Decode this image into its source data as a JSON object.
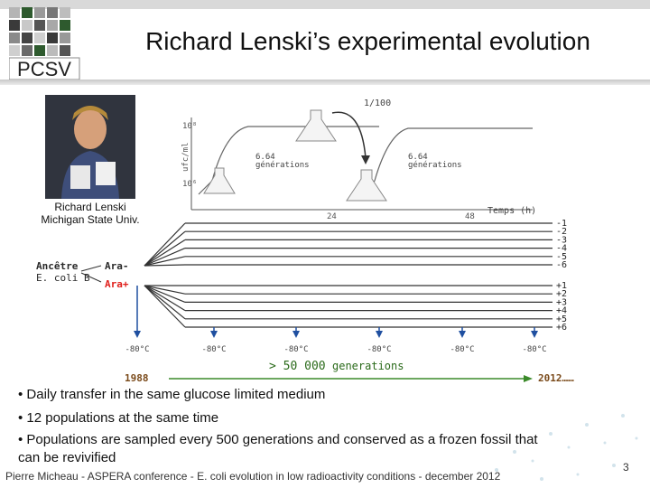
{
  "slide": {
    "logo_text": "PCSV",
    "title": "Richard Lenski’s experimental evolution",
    "photo_caption_line1": "Richard Lenski",
    "photo_caption_line2": "Michigan State Univ.",
    "footer": "Pierre Micheau - ASPERA conference - E. coli evolution in low radioactivity conditions - december 2012",
    "page_number": "3"
  },
  "diagram": {
    "dilution_label": "1/100",
    "growth_label_1a": "6.64",
    "growth_label_1b": "générations",
    "growth_label_2a": "6.64",
    "growth_label_2b": "générations",
    "y_axis_label": "ufc/ml",
    "y_tick_top": "10⁸",
    "y_tick_low": "10⁶",
    "time_label": "Temps (h)",
    "time_tick_1": "24",
    "time_tick_2": "48",
    "ancestor_label_1": "Ancêtre",
    "ancestor_label_2": "E. coli B",
    "ara_minus": "Ara-",
    "ara_plus": "Ara+",
    "minus_lines": [
      "-1",
      "-2",
      "-3",
      "-4",
      "-5",
      "-6"
    ],
    "plus_lines": [
      "+1",
      "+2",
      "+3",
      "+4",
      "+5",
      "+6"
    ],
    "freezer_labels": [
      "-80°C",
      "-80°C",
      "-80°C",
      "-80°C",
      "-80°C",
      "-80°C"
    ],
    "start_year": "1988",
    "end_year": "2012……",
    "generations_label_prefix": "> 50 000",
    "generations_label_suffix": "generations"
  },
  "bullets": [
    "• Daily transfer in the same glucose limited medium",
    "• 12 populations at the same time",
    "• Populations are sampled every 500 generations and conserved as a frozen fossil that",
    "can be revivified"
  ],
  "colors": {
    "ara_plus": "#e0201c",
    "arrow_blue": "#1f4fa0",
    "gen_arrow": "#3b8a2a",
    "year_color": "#7a4a1a"
  }
}
